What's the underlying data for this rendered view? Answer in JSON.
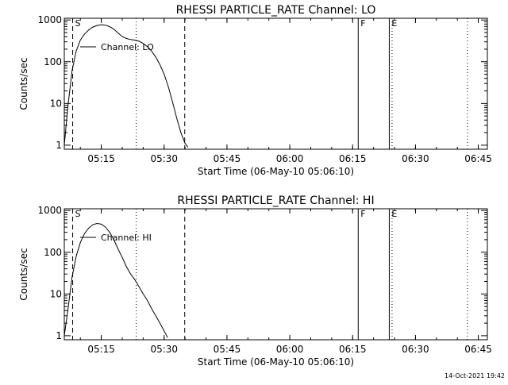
{
  "footer_timestamp": "14-Oct-2021 19:42",
  "chart_data": [
    {
      "type": "line",
      "title": "RHESSI PARTICLE_RATE Channel: LO",
      "xlabel": "Start Time (06-May-10 05:06:10)",
      "ylabel": "Counts/sec",
      "yscale": "log",
      "ylim": [
        0.8,
        1100
      ],
      "xlim": [
        "05:06:10",
        "06:47:10"
      ],
      "x_ticks": [
        "05:15",
        "05:30",
        "05:45",
        "06:00",
        "06:15",
        "06:30",
        "06:45"
      ],
      "y_ticks": [
        "1",
        "10",
        "100",
        "1000"
      ],
      "legend": "Channel: LO",
      "series": [
        {
          "name": "Channel: LO",
          "x": [
            "05:06:10",
            "05:07:00",
            "05:08:00",
            "05:09:00",
            "05:10:00",
            "05:11:00",
            "05:12:00",
            "05:13:00",
            "05:14:00",
            "05:15:00",
            "05:16:00",
            "05:17:00",
            "05:18:00",
            "05:19:00",
            "05:20:00",
            "05:21:00",
            "05:22:00",
            "05:23:00",
            "05:24:00",
            "05:25:00",
            "05:26:00",
            "05:27:00",
            "05:28:00",
            "05:29:00",
            "05:30:00",
            "05:31:00",
            "05:32:00",
            "05:33:00",
            "05:34:00",
            "05:35:00",
            "05:35:40"
          ],
          "y": [
            1,
            8,
            60,
            180,
            330,
            460,
            580,
            680,
            740,
            770,
            750,
            690,
            600,
            490,
            400,
            360,
            340,
            330,
            310,
            275,
            230,
            180,
            130,
            85,
            50,
            25,
            11,
            4.5,
            2,
            1.1,
            0.9
          ]
        }
      ],
      "markers": [
        {
          "label": "S",
          "time": "05:08:10",
          "style": "dashed"
        },
        {
          "label": "",
          "time": "05:23:20",
          "style": "dotted"
        },
        {
          "label": "",
          "time": "05:34:55",
          "style": "dashed"
        },
        {
          "label": "F",
          "time": "06:16:20",
          "style": "solid"
        },
        {
          "label": "E",
          "time": "06:23:45",
          "style": "solid"
        },
        {
          "label": "",
          "time": "06:24:25",
          "style": "dotted"
        },
        {
          "label": "",
          "time": "06:42:25",
          "style": "dotted"
        }
      ]
    },
    {
      "type": "line",
      "title": "RHESSI PARTICLE_RATE Channel: HI",
      "xlabel": "Start Time (06-May-10 05:06:10)",
      "ylabel": "Counts/sec",
      "yscale": "log",
      "ylim": [
        0.8,
        1100
      ],
      "xlim": [
        "05:06:10",
        "06:47:10"
      ],
      "x_ticks": [
        "05:15",
        "05:30",
        "05:45",
        "06:00",
        "06:15",
        "06:30",
        "06:45"
      ],
      "y_ticks": [
        "1",
        "10",
        "100",
        "1000"
      ],
      "legend": "Channel: HI",
      "series": [
        {
          "name": "Channel: HI",
          "x": [
            "05:06:10",
            "05:07:00",
            "05:08:00",
            "05:09:00",
            "05:10:00",
            "05:11:00",
            "05:12:00",
            "05:13:00",
            "05:14:00",
            "05:15:00",
            "05:16:00",
            "05:17:00",
            "05:18:00",
            "05:19:00",
            "05:20:00",
            "05:21:00",
            "05:22:00",
            "05:23:00",
            "05:24:00",
            "05:25:00",
            "05:26:00",
            "05:27:00",
            "05:28:00",
            "05:29:00",
            "05:30:00",
            "05:30:50"
          ],
          "y": [
            1,
            4,
            25,
            80,
            170,
            280,
            380,
            460,
            490,
            470,
            400,
            300,
            200,
            120,
            75,
            45,
            30,
            22,
            15,
            10,
            7,
            4.5,
            3,
            2,
            1.3,
            0.9
          ]
        }
      ],
      "markers": [
        {
          "label": "S",
          "time": "05:08:10",
          "style": "dashed"
        },
        {
          "label": "",
          "time": "05:23:20",
          "style": "dotted"
        },
        {
          "label": "",
          "time": "05:34:55",
          "style": "dashed"
        },
        {
          "label": "F",
          "time": "06:16:20",
          "style": "solid"
        },
        {
          "label": "E",
          "time": "06:23:45",
          "style": "solid"
        },
        {
          "label": "",
          "time": "06:24:25",
          "style": "dotted"
        },
        {
          "label": "",
          "time": "06:42:25",
          "style": "dotted"
        }
      ]
    }
  ]
}
